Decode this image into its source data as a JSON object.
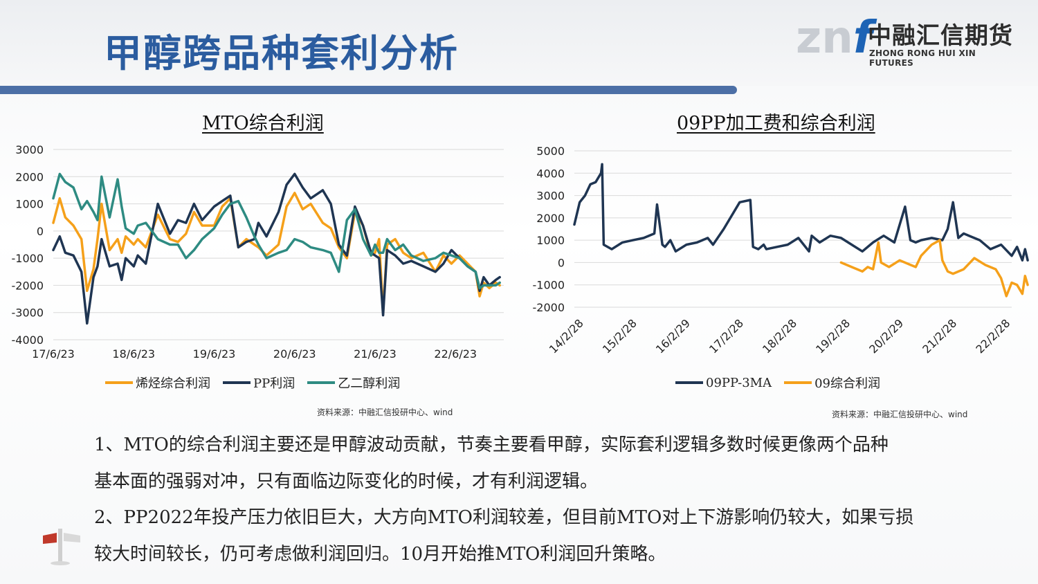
{
  "header": {
    "title": "甲醇跨品种套利分析",
    "logo_mark_z": "zn",
    "logo_mark_f": "f",
    "logo_cn": "中融汇信期货",
    "logo_en": "ZHONG RONG HUI XIN FUTURES"
  },
  "colors": {
    "accent": "#4c6fa6",
    "orange": "#f5a01a",
    "navy": "#1f3552",
    "teal": "#2e8b82"
  },
  "left_source": "资料来源：中融汇信投研中心、wind",
  "right_source": "资料来源：中融汇信投研中心、wind",
  "paragraphs": [
    "1、MTO的综合利润主要还是甲醇波动贡献，节奏主要看甲醇，实际套利逻辑多数时候更像两个品种",
    "基本面的强弱对冲，只有面临边际变化的时候，才有利润逻辑。",
    "2、PP2022年投产压力依旧巨大，大方向MTO利润较差，但目前MTO对上下游影响仍较大，如果亏损",
    "较大时间较长，仍可考虑做利润回归。10月开始推MTO利润回升策略。"
  ],
  "chart_data": [
    {
      "type": "line",
      "title": "MTO综合利润",
      "ylim": [
        -4000,
        3000
      ],
      "yticks": [
        3000,
        2000,
        1000,
        0,
        -1000,
        -2000,
        -3000,
        -4000
      ],
      "xlim": [
        0,
        5.6
      ],
      "xtick_labels": [
        "17/6/23",
        "18/6/23",
        "19/6/23",
        "20/6/23",
        "21/6/23",
        "22/6/23"
      ],
      "xtick_values": [
        0,
        1,
        2,
        3,
        4,
        5
      ],
      "grid": true,
      "legend_position": "bottom",
      "series": [
        {
          "name": "烯烃综合利润",
          "color": "#f5a01a",
          "x": [
            0,
            0.08,
            0.15,
            0.25,
            0.35,
            0.42,
            0.5,
            0.55,
            0.6,
            0.7,
            0.8,
            0.85,
            0.9,
            1.0,
            1.05,
            1.15,
            1.3,
            1.45,
            1.55,
            1.65,
            1.75,
            1.85,
            2.0,
            2.1,
            2.2,
            2.3,
            2.4,
            2.5,
            2.55,
            2.65,
            2.8,
            2.9,
            3.0,
            3.1,
            3.2,
            3.35,
            3.45,
            3.55,
            3.65,
            3.75,
            3.85,
            3.95,
            4.0,
            4.05,
            4.1,
            4.15,
            4.25,
            4.35,
            4.45,
            4.6,
            4.75,
            4.85,
            4.95,
            5.05,
            5.15,
            5.25,
            5.3,
            5.35,
            5.42,
            5.5,
            5.55
          ],
          "y": [
            300,
            1200,
            500,
            200,
            -300,
            -2200,
            -1400,
            -300,
            1000,
            -700,
            -300,
            -800,
            -200,
            -500,
            -300,
            -600,
            600,
            -300,
            -400,
            -100,
            700,
            200,
            200,
            900,
            1200,
            -600,
            -300,
            -500,
            -600,
            -900,
            -500,
            900,
            1400,
            800,
            1000,
            300,
            100,
            -600,
            -1000,
            700,
            200,
            -900,
            -800,
            -300,
            -3000,
            -500,
            -300,
            -800,
            -1000,
            -800,
            -1500,
            -900,
            -1200,
            -900,
            -1200,
            -1500,
            -2400,
            -1900,
            -2100,
            -1900,
            -2000
          ]
        },
        {
          "name": "PP利润",
          "color": "#1f3552",
          "x": [
            0,
            0.08,
            0.15,
            0.25,
            0.35,
            0.42,
            0.5,
            0.55,
            0.6,
            0.7,
            0.8,
            0.85,
            0.9,
            1.0,
            1.05,
            1.15,
            1.3,
            1.45,
            1.55,
            1.65,
            1.75,
            1.85,
            2.0,
            2.1,
            2.2,
            2.3,
            2.4,
            2.5,
            2.55,
            2.65,
            2.8,
            2.9,
            3.0,
            3.1,
            3.2,
            3.35,
            3.45,
            3.55,
            3.65,
            3.75,
            3.85,
            3.95,
            4.0,
            4.05,
            4.1,
            4.15,
            4.25,
            4.35,
            4.45,
            4.6,
            4.75,
            4.85,
            4.95,
            5.05,
            5.15,
            5.25,
            5.3,
            5.35,
            5.42,
            5.5,
            5.55
          ],
          "y": [
            -700,
            -200,
            -800,
            -900,
            -1500,
            -3400,
            -1700,
            -1300,
            -300,
            -1300,
            -1200,
            -1800,
            -1000,
            -1300,
            -900,
            -1200,
            1000,
            -100,
            400,
            300,
            1000,
            400,
            900,
            1100,
            1300,
            -600,
            -400,
            -300,
            300,
            -200,
            700,
            1700,
            2100,
            1600,
            1200,
            1500,
            1000,
            -500,
            -900,
            900,
            200,
            -800,
            -900,
            -1000,
            -3100,
            -700,
            -900,
            -1200,
            -1100,
            -1300,
            -1500,
            -1200,
            -700,
            -1000,
            -1300,
            -1500,
            -2200,
            -1700,
            -2000,
            -1800,
            -1700
          ]
        },
        {
          "name": "乙二醇利润",
          "color": "#2e8b82",
          "x": [
            0,
            0.08,
            0.15,
            0.25,
            0.35,
            0.42,
            0.5,
            0.55,
            0.6,
            0.7,
            0.8,
            0.85,
            0.9,
            1.0,
            1.05,
            1.15,
            1.3,
            1.45,
            1.55,
            1.65,
            1.75,
            1.85,
            2.0,
            2.1,
            2.2,
            2.3,
            2.4,
            2.5,
            2.55,
            2.65,
            2.8,
            2.9,
            3.0,
            3.1,
            3.2,
            3.35,
            3.45,
            3.55,
            3.65,
            3.75,
            3.85,
            3.95,
            4.0,
            4.05,
            4.1,
            4.15,
            4.25,
            4.35,
            4.45,
            4.6,
            4.75,
            4.85,
            4.95,
            5.05,
            5.15,
            5.25,
            5.3,
            5.35,
            5.42,
            5.5,
            5.55
          ],
          "y": [
            1200,
            2100,
            1800,
            1600,
            800,
            1100,
            700,
            400,
            2000,
            500,
            1900,
            900,
            100,
            -100,
            200,
            300,
            -300,
            -500,
            -500,
            -1000,
            -700,
            -300,
            100,
            600,
            1000,
            1100,
            500,
            -200,
            -500,
            -1000,
            -800,
            -700,
            -300,
            -400,
            -600,
            -700,
            -800,
            -1500,
            400,
            800,
            -300,
            -900,
            -500,
            -800,
            -800,
            -300,
            -700,
            -500,
            -900,
            -1100,
            -1000,
            -800,
            -900,
            -1000,
            -1300,
            -1500,
            -2100,
            -2000,
            -2000,
            -2000,
            -1900
          ]
        }
      ]
    },
    {
      "type": "line",
      "title": "09PP加工费和综合利润",
      "ylim": [
        -2000,
        5000
      ],
      "yticks": [
        5000,
        4000,
        3000,
        2000,
        1000,
        0,
        -1000,
        -2000
      ],
      "xlim": [
        0,
        8.2
      ],
      "xtick_labels": [
        "14/2/28",
        "15/2/28",
        "16/2/29",
        "17/2/28",
        "18/2/28",
        "19/2/28",
        "20/2/29",
        "21/2/28",
        "22/2/28"
      ],
      "xtick_values": [
        0,
        1,
        2,
        3,
        4,
        5,
        6,
        7,
        8
      ],
      "grid": true,
      "legend_position": "bottom",
      "series": [
        {
          "name": "09PP-3MA",
          "color": "#1f3552",
          "x": [
            0,
            0.1,
            0.2,
            0.3,
            0.4,
            0.5,
            0.52,
            0.55,
            0.7,
            0.9,
            1.1,
            1.3,
            1.5,
            1.55,
            1.65,
            1.7,
            1.8,
            1.9,
            2.1,
            2.3,
            2.5,
            2.6,
            2.8,
            3.1,
            3.3,
            3.35,
            3.45,
            3.55,
            3.6,
            3.8,
            4.0,
            4.2,
            4.4,
            4.45,
            4.6,
            4.8,
            5.0,
            5.2,
            5.4,
            5.6,
            5.8,
            6.0,
            6.2,
            6.3,
            6.4,
            6.5,
            6.7,
            6.9,
            7.0,
            7.1,
            7.2,
            7.3,
            7.4,
            7.6,
            7.8,
            8.0,
            8.2,
            8.3,
            8.4,
            8.45,
            8.5
          ],
          "y": [
            1700,
            2700,
            3000,
            3500,
            3600,
            4000,
            4400,
            800,
            600,
            900,
            1000,
            1100,
            1300,
            2600,
            800,
            700,
            1000,
            500,
            800,
            900,
            1100,
            800,
            1500,
            2700,
            2800,
            700,
            600,
            800,
            600,
            700,
            800,
            1100,
            500,
            1200,
            900,
            1200,
            1100,
            800,
            500,
            900,
            1200,
            900,
            2500,
            1000,
            900,
            1000,
            1100,
            1000,
            1500,
            2700,
            1100,
            1300,
            1200,
            1000,
            600,
            800,
            300,
            700,
            100,
            600,
            100
          ]
        },
        {
          "name": "09综合利润",
          "color": "#f5a01a",
          "x": [
            5.0,
            5.2,
            5.4,
            5.5,
            5.6,
            5.7,
            5.75,
            5.9,
            6.1,
            6.3,
            6.4,
            6.5,
            6.7,
            6.85,
            6.9,
            7.0,
            7.1,
            7.3,
            7.5,
            7.7,
            7.9,
            8.0,
            8.1,
            8.2,
            8.3,
            8.4,
            8.45,
            8.5
          ],
          "y": [
            0,
            -200,
            -400,
            -200,
            -300,
            900,
            0,
            -200,
            100,
            -100,
            -200,
            300,
            800,
            1000,
            100,
            -400,
            -500,
            -300,
            200,
            -100,
            -300,
            -700,
            -1500,
            -900,
            -1000,
            -1400,
            -600,
            -1000
          ]
        }
      ]
    }
  ]
}
